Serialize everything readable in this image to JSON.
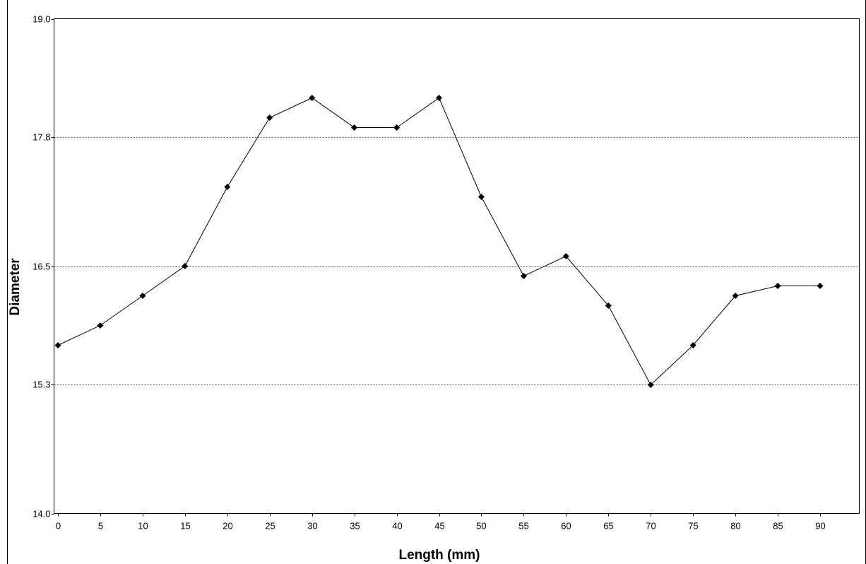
{
  "chart_data": {
    "type": "line",
    "title": "",
    "xlabel": "Length (mm)",
    "ylabel": "Diameter",
    "xlim": [
      -0.5,
      95
    ],
    "ylim": [
      14.0,
      19.0
    ],
    "x_ticks": [
      "0",
      "5",
      "10",
      "15",
      "20",
      "25",
      "30",
      "35",
      "40",
      "45",
      "50",
      "55",
      "60",
      "65",
      "70",
      "75",
      "80",
      "85",
      "90"
    ],
    "y_ticks": [
      "19.0",
      "17.8",
      "16.5",
      "15.3",
      "14.0"
    ],
    "grid": "horizontal dotted",
    "marker": "diamond",
    "line_color": "#000000",
    "series": [
      {
        "x": [
          0,
          5,
          10,
          15,
          20,
          25,
          30,
          35,
          40,
          45,
          50,
          55,
          60,
          65,
          70,
          75,
          80,
          85,
          90
        ],
        "values": [
          15.7,
          15.9,
          16.2,
          16.5,
          17.3,
          18.0,
          18.2,
          17.9,
          17.9,
          18.2,
          17.2,
          16.4,
          16.6,
          16.1,
          15.3,
          15.7,
          16.2,
          16.3,
          16.3
        ]
      }
    ]
  }
}
